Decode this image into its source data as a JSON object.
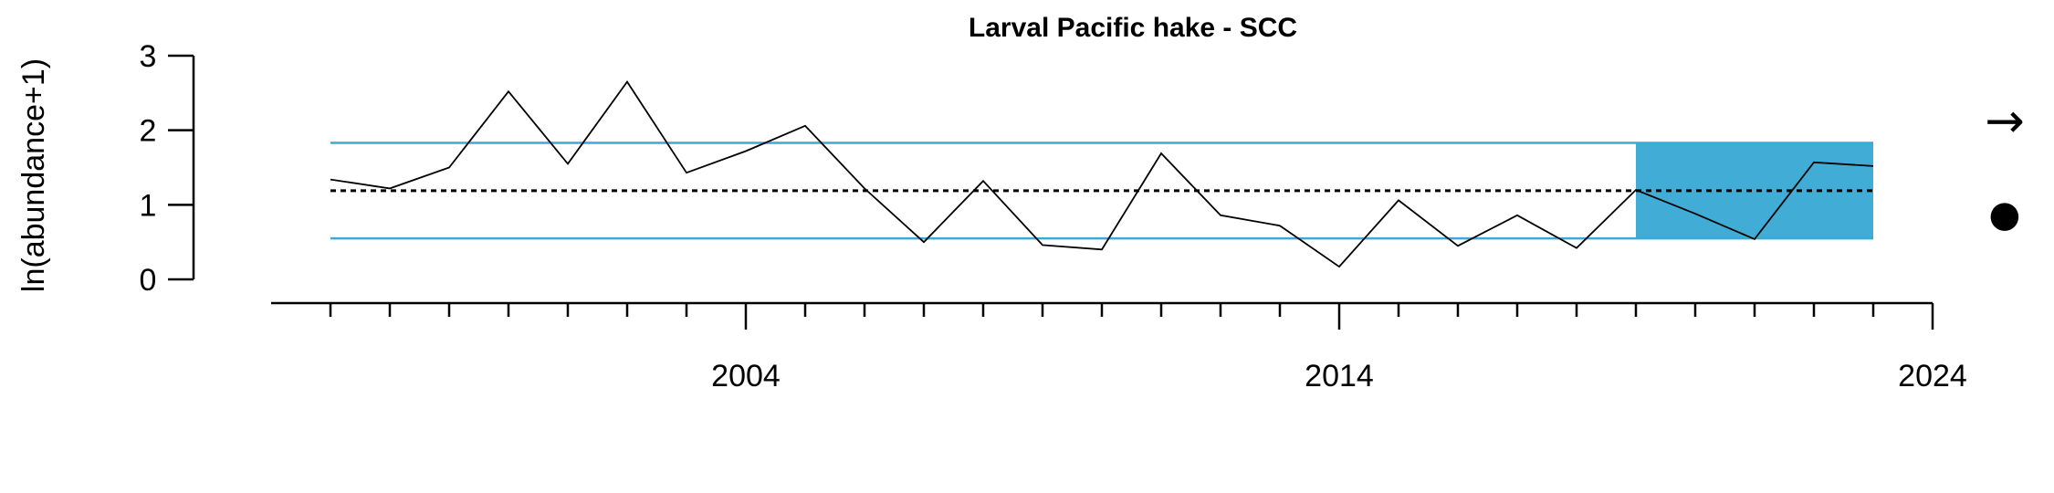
{
  "chart_data": {
    "type": "line",
    "title": "Larval Pacific hake - SCC",
    "ylabel": "ln(abundance+1)",
    "xlabel": "",
    "x": [
      1997,
      1998,
      1999,
      2000,
      2001,
      2002,
      2003,
      2004,
      2005,
      2006,
      2007,
      2008,
      2009,
      2010,
      2011,
      2012,
      2013,
      2014,
      2015,
      2016,
      2017,
      2018,
      2019,
      2020,
      2021,
      2022,
      2023
    ],
    "series": [
      {
        "values": [
          1.34,
          1.22,
          1.5,
          2.52,
          1.55,
          2.65,
          1.43,
          1.72,
          2.06,
          1.22,
          0.5,
          1.32,
          0.46,
          0.4,
          1.69,
          0.86,
          0.72,
          0.17,
          1.06,
          0.45,
          0.86,
          0.42,
          1.2,
          0.88,
          0.54,
          1.57,
          1.52
        ]
      }
    ],
    "mean": 1.19,
    "upper_sd": 1.83,
    "lower_sd": 0.55,
    "recent_window": [
      2019,
      2023
    ],
    "xlim": [
      1996,
      2024
    ],
    "ylim": [
      0,
      3
    ],
    "x_tick_labels": [
      "2004",
      "2014",
      "2024"
    ],
    "y_tick_labels": [
      "0",
      "1",
      "2",
      "3"
    ],
    "trend_symbol": "→",
    "mean_symbol": "●",
    "colors": {
      "line": "#000000",
      "sd_lines": "#3fa9d5",
      "recent_shade": "#41add6",
      "mean_line": "#000000"
    },
    "grid": false,
    "legend": "none"
  }
}
